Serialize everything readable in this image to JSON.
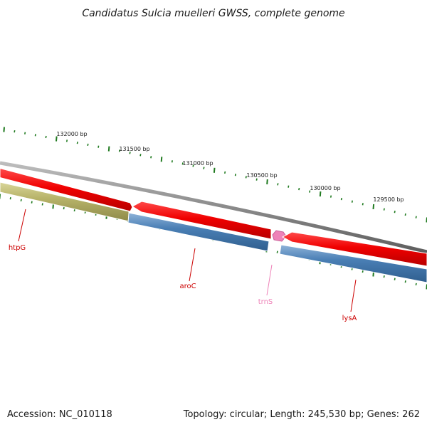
{
  "title": "Candidatus Sulcia muelleri GWSS, complete genome",
  "footer": {
    "accession": "Accession: NC_010118",
    "summary": "Topology: circular; Length: 245,530 bp; Genes: 262"
  },
  "scale_labels": [
    "132000 bp",
    "131500 bp",
    "131000 bp",
    "130500 bp",
    "130000 bp",
    "129500 bp"
  ],
  "genes": [
    {
      "name": "htpG",
      "color": "#cc0000"
    },
    {
      "name": "aroC",
      "color": "#cc0000"
    },
    {
      "name": "trnS",
      "color": "#ee82b8"
    },
    {
      "name": "lysA",
      "color": "#cc0000"
    }
  ],
  "colors": {
    "backbone": "#8a8a8a",
    "cds_forward": "#e8000a",
    "cds_reverse_blue": "#4a7fb5",
    "cds_reverse_olive": "#b8b46a",
    "trna": "#ee82b8",
    "tick": "#1f7a1f"
  }
}
